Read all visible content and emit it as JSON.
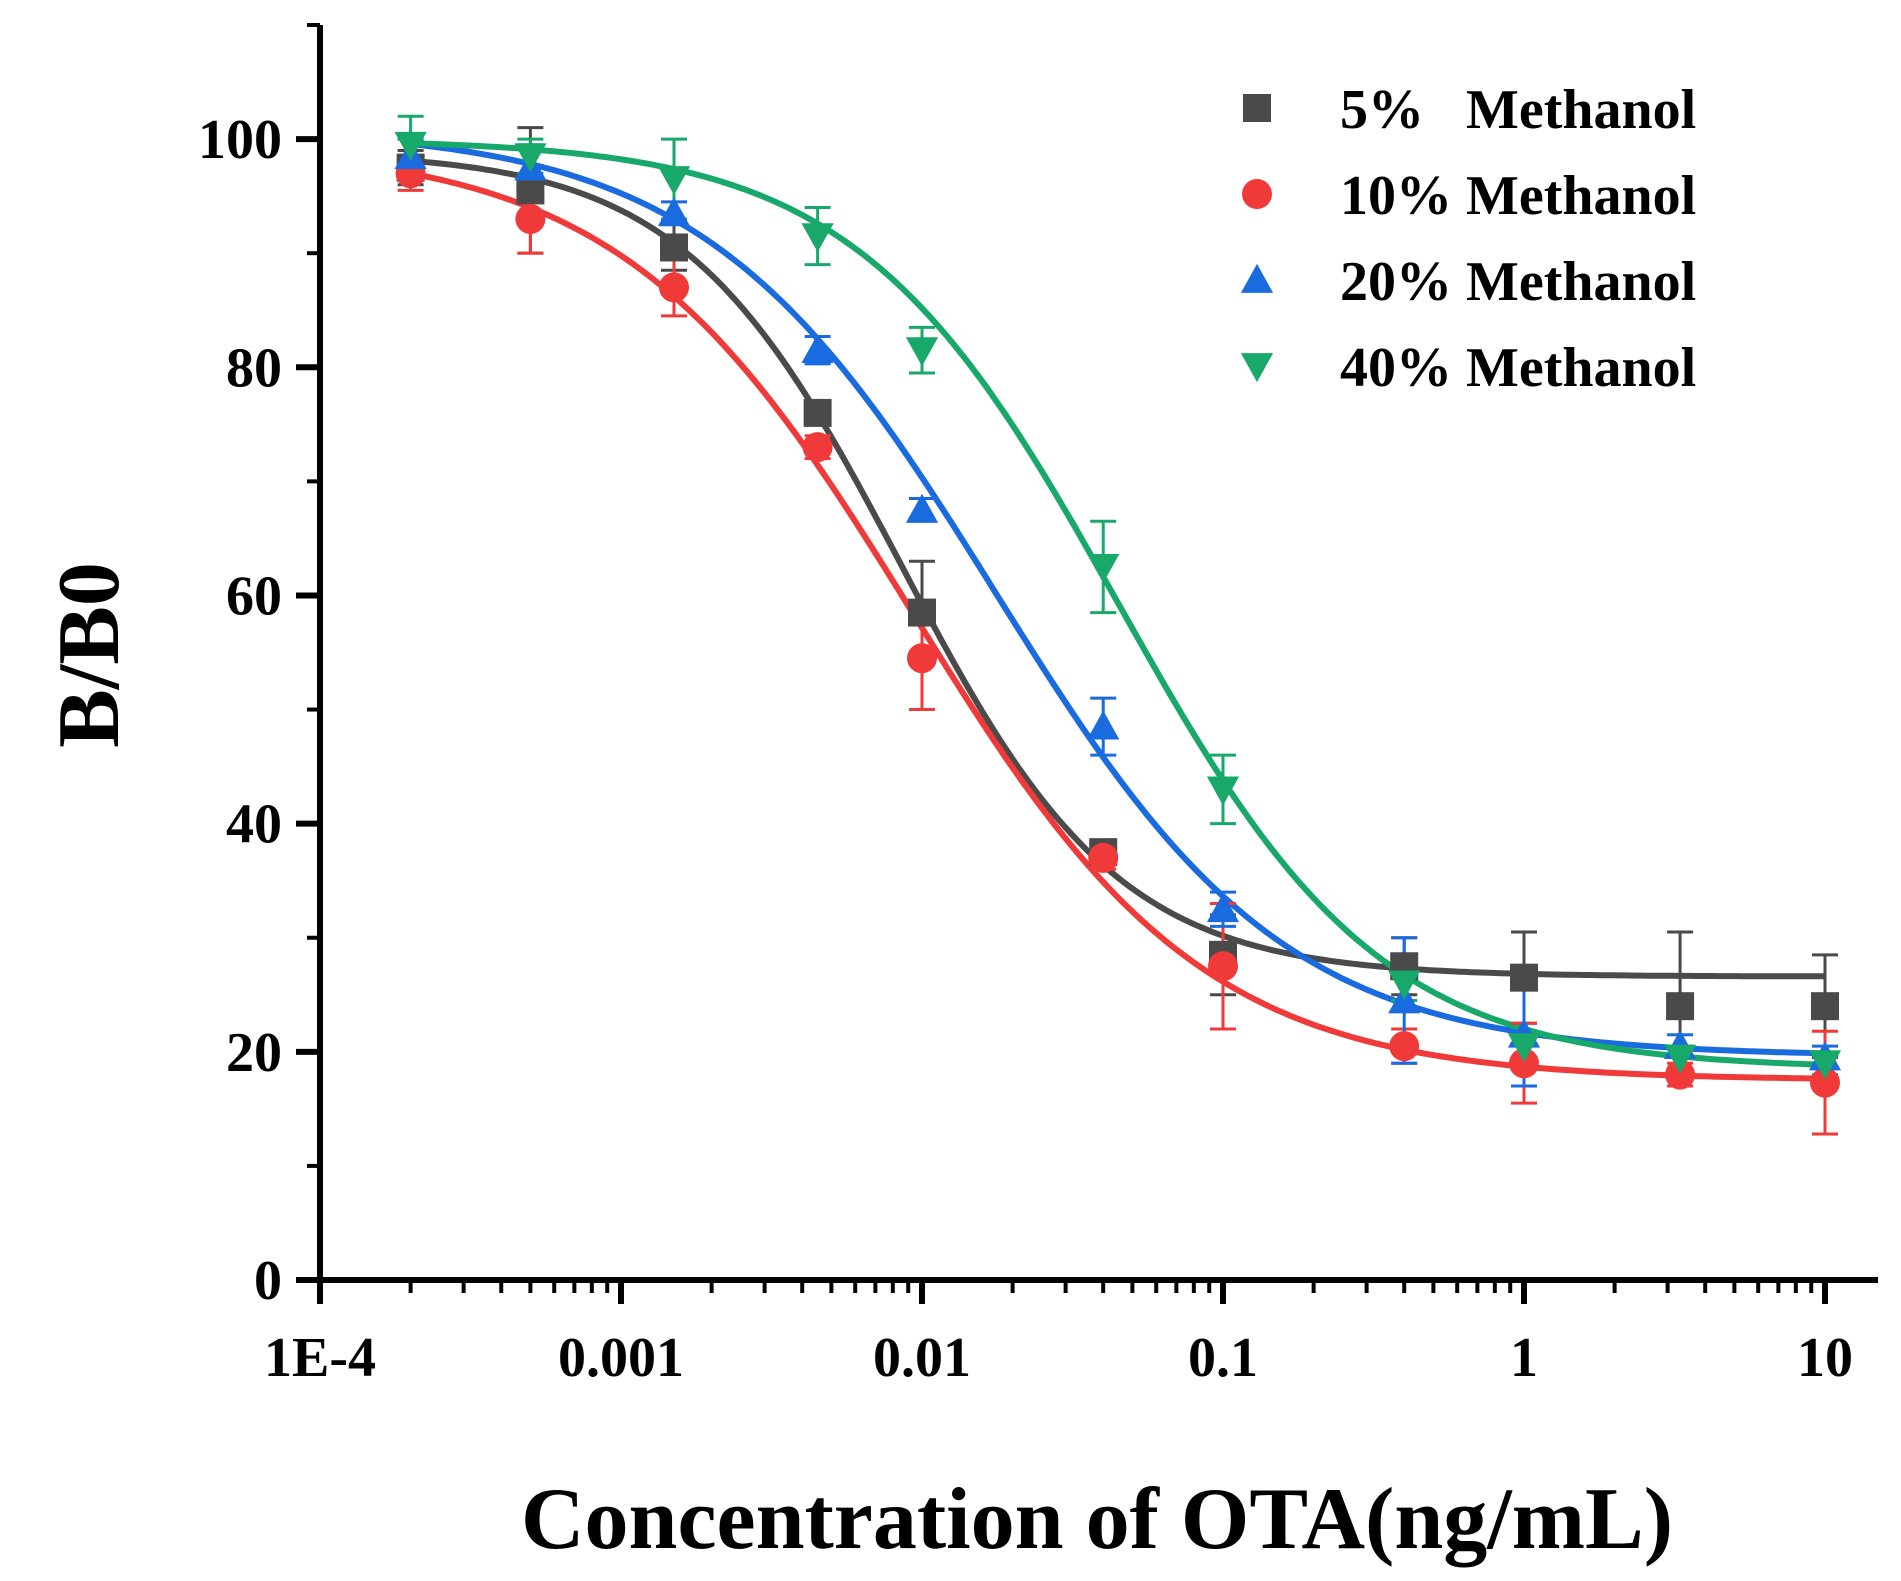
{
  "chart_data": {
    "type": "scatter",
    "xscale": "log",
    "xlabel": "Concentration of OTA(ng/mL)",
    "ylabel": "B/B0",
    "xlim": [
      0.0001,
      15
    ],
    "ylim": [
      0,
      110
    ],
    "xticks": [
      {
        "value": 0.0001,
        "label": "1E-4"
      },
      {
        "value": 0.001,
        "label": "0.001"
      },
      {
        "value": 0.01,
        "label": "0.01"
      },
      {
        "value": 0.1,
        "label": "0.1"
      },
      {
        "value": 1,
        "label": "1"
      },
      {
        "value": 10,
        "label": "10"
      }
    ],
    "yticks": [
      {
        "value": 0,
        "label": "0"
      },
      {
        "value": 20,
        "label": "20"
      },
      {
        "value": 40,
        "label": "40"
      },
      {
        "value": 60,
        "label": "60"
      },
      {
        "value": 80,
        "label": "80"
      },
      {
        "value": 100,
        "label": "100"
      }
    ],
    "legend_position": "top-right",
    "series": [
      {
        "name": "5%   Methanol",
        "color": "#4a4a4a",
        "marker": "square",
        "x": [
          0.0002,
          0.0005,
          0.0015,
          0.0045,
          0.01,
          0.04,
          0.1,
          0.4,
          1,
          3.3,
          10
        ],
        "y": [
          97.5,
          95.5,
          90.5,
          76,
          58.5,
          37.5,
          28.5,
          27.5,
          26.5,
          24,
          24
        ],
        "err": [
          1.5,
          5.5,
          2,
          1,
          4.5,
          1,
          3.5,
          2.5,
          4,
          6.5,
          4.5
        ],
        "fit": {
          "top": 98.9,
          "bottom": 26.6,
          "ec50": 0.0085,
          "hill": 1.2
        }
      },
      {
        "name": "10% Methanol",
        "color": "#f03a3a",
        "marker": "circle",
        "x": [
          0.0002,
          0.0005,
          0.0015,
          0.0045,
          0.01,
          0.04,
          0.1,
          0.4,
          1,
          3.3,
          10
        ],
        "y": [
          97,
          93,
          87,
          73,
          54.5,
          37,
          27.5,
          20.5,
          19,
          18,
          17.3
        ],
        "err": [
          1.5,
          3,
          2.5,
          1,
          4.5,
          1,
          5.5,
          1.5,
          3.5,
          1,
          4.5
        ],
        "fit": {
          "top": 99.5,
          "bottom": 17.5,
          "ec50": 0.0093,
          "hill": 0.9
        }
      },
      {
        "name": "20% Methanol",
        "color": "#1a6be0",
        "marker": "triangle-up",
        "x": [
          0.0002,
          0.0005,
          0.0015,
          0.0045,
          0.01,
          0.04,
          0.1,
          0.4,
          1,
          3.3,
          10
        ],
        "y": [
          98.5,
          97.5,
          93.5,
          81.5,
          67.5,
          48.5,
          32.5,
          24.5,
          21.5,
          20.5,
          19.5
        ],
        "err": [
          1.5,
          2,
          1,
          1.2,
          1,
          2.5,
          1.5,
          5.5,
          4.5,
          1,
          1
        ],
        "fit": {
          "top": 101,
          "bottom": 19.6,
          "ec50": 0.0175,
          "hill": 0.9
        }
      },
      {
        "name": "40% Methanol",
        "color": "#17a86a",
        "marker": "triangle-down",
        "x": [
          0.0002,
          0.0005,
          0.0015,
          0.0045,
          0.01,
          0.04,
          0.1,
          0.4,
          1,
          3.3,
          10
        ],
        "y": [
          99.5,
          98.5,
          96.5,
          91.5,
          81.5,
          62.5,
          43,
          26,
          20.5,
          19.5,
          19
        ],
        "err": [
          2.5,
          1.5,
          3.5,
          2.5,
          2,
          4,
          3,
          1.5,
          1,
          1,
          1
        ],
        "fit": {
          "top": 100,
          "bottom": 18.5,
          "ec50": 0.045,
          "hill": 1.0
        }
      }
    ]
  }
}
